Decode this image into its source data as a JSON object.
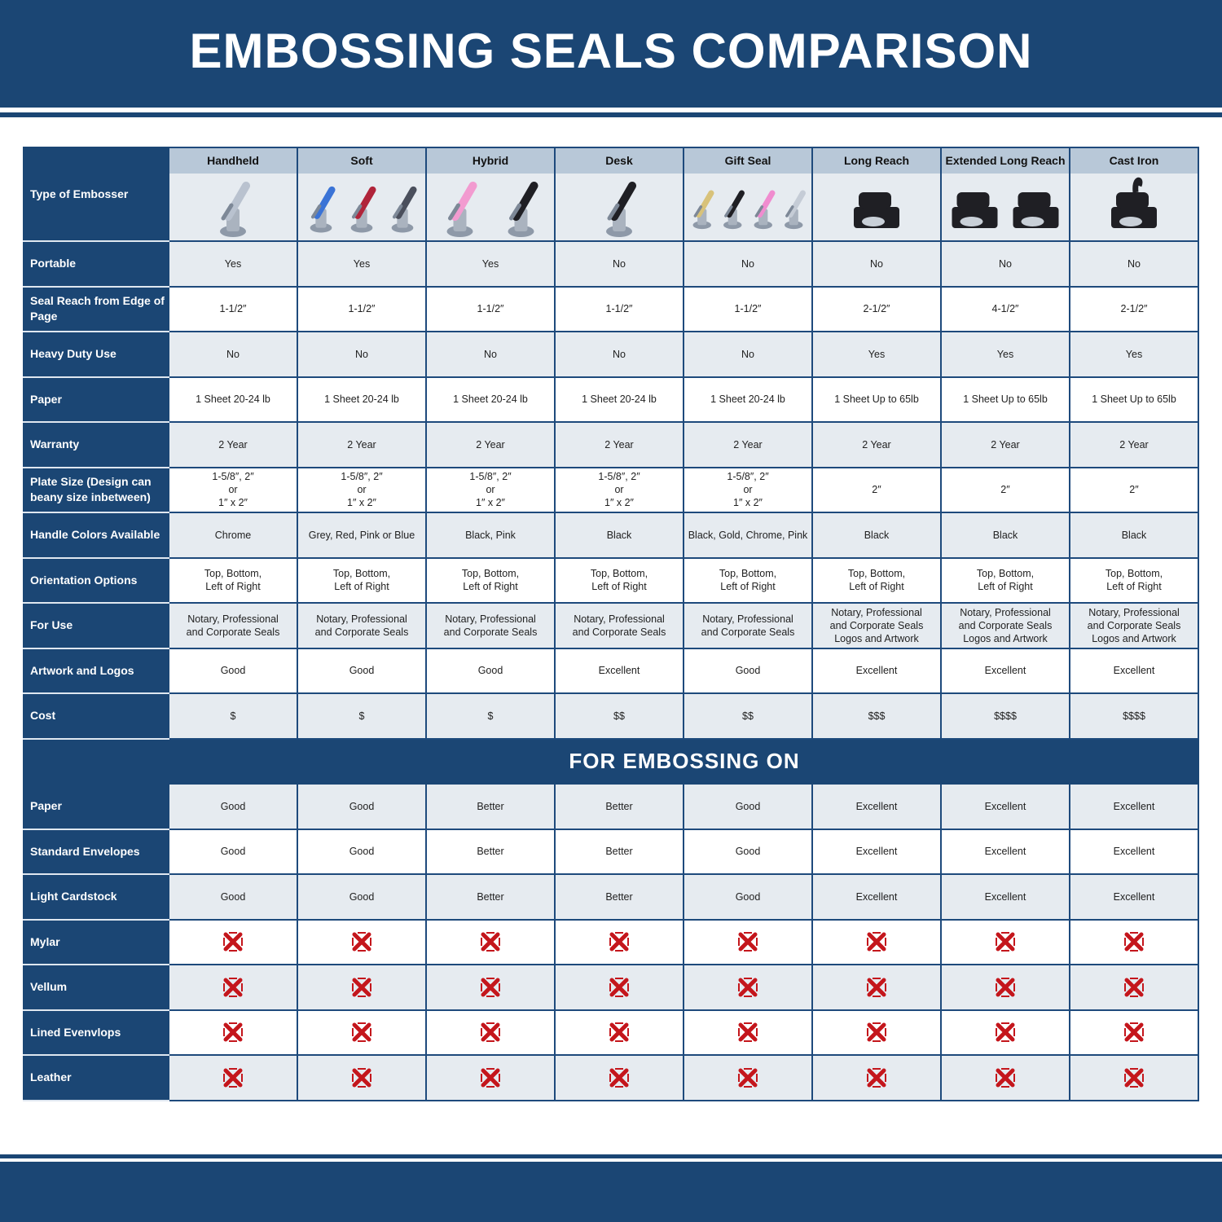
{
  "title": "EMBOSSING SEALS COMPARISON",
  "type_label": "Type of Embosser",
  "columns": [
    "Handheld",
    "Soft",
    "Hybrid",
    "Desk",
    "Gift Seal",
    "Long Reach",
    "Extended Long Reach",
    "Cast Iron"
  ],
  "product_image_colors": [
    [
      "#b9c2cf"
    ],
    [
      "#3a73d6",
      "#b0243a",
      "#4a4f5c"
    ],
    [
      "#f29bd0",
      "#1f1f24"
    ],
    [
      "#1f1f24"
    ],
    [
      "#d8c27a",
      "#1f1f24",
      "#f08ccf",
      "#c5ccd6"
    ],
    [
      "#1f1f24"
    ],
    [
      "#1f1f24",
      "#1f1f24"
    ],
    [
      "#1f1f24"
    ]
  ],
  "rows": [
    {
      "label": "Portable",
      "values": [
        "Yes",
        "Yes",
        "Yes",
        "No",
        "No",
        "No",
        "No",
        "No"
      ]
    },
    {
      "label": "Seal Reach from Edge of Page",
      "values": [
        "1-1/2″",
        "1-1/2″",
        "1-1/2″",
        "1-1/2″",
        "1-1/2″",
        "2-1/2″",
        "4-1/2″",
        "2-1/2″"
      ]
    },
    {
      "label": "Heavy Duty Use",
      "values": [
        "No",
        "No",
        "No",
        "No",
        "No",
        "Yes",
        "Yes",
        "Yes"
      ]
    },
    {
      "label": "Paper",
      "values": [
        "1 Sheet 20-24 lb",
        "1 Sheet 20-24 lb",
        "1 Sheet 20-24 lb",
        "1 Sheet 20-24 lb",
        "1 Sheet 20-24 lb",
        "1 Sheet Up to 65lb",
        "1 Sheet Up to 65lb",
        "1 Sheet Up to 65lb"
      ]
    },
    {
      "label": "Warranty",
      "values": [
        "2 Year",
        "2 Year",
        "2 Year",
        "2 Year",
        "2 Year",
        "2 Year",
        "2 Year",
        "2 Year"
      ]
    },
    {
      "label": "Plate Size (Design can beany size inbetween)",
      "values": [
        "1-5/8″, 2″\nor\n1″ x 2″",
        "1-5/8″, 2″\nor\n1″ x 2″",
        "1-5/8″, 2″\nor\n1″ x 2″",
        "1-5/8″, 2″\nor\n1″ x 2″",
        "1-5/8″, 2″\nor\n1″ x 2″",
        "2″",
        "2″",
        "2″"
      ]
    },
    {
      "label": "Handle Colors Available",
      "values": [
        "Chrome",
        "Grey, Red, Pink or Blue",
        "Black, Pink",
        "Black",
        "Black, Gold, Chrome, Pink",
        "Black",
        "Black",
        "Black"
      ]
    },
    {
      "label": "Orientation Options",
      "values": [
        "Top, Bottom,\nLeft of Right",
        "Top, Bottom,\nLeft of Right",
        "Top, Bottom,\nLeft of Right",
        "Top, Bottom,\nLeft of Right",
        "Top, Bottom,\nLeft of Right",
        "Top, Bottom,\nLeft of Right",
        "Top, Bottom,\nLeft of Right",
        "Top, Bottom,\nLeft of Right"
      ]
    },
    {
      "label": "For Use",
      "values": [
        "Notary, Professional\nand Corporate Seals",
        "Notary, Professional\nand Corporate Seals",
        "Notary, Professional\nand Corporate Seals",
        "Notary, Professional\nand Corporate Seals",
        "Notary, Professional\nand Corporate Seals",
        "Notary, Professional\nand Corporate Seals\nLogos and Artwork",
        "Notary, Professional\nand Corporate Seals\nLogos and Artwork",
        "Notary, Professional\nand Corporate Seals\nLogos and Artwork"
      ]
    },
    {
      "label": "Artwork and Logos",
      "values": [
        "Good",
        "Good",
        "Good",
        "Excellent",
        "Good",
        "Excellent",
        "Excellent",
        "Excellent"
      ]
    },
    {
      "label": "Cost",
      "values": [
        "$",
        "$",
        "$",
        "$$",
        "$$",
        "$$$",
        "$$$$",
        "$$$$"
      ]
    }
  ],
  "section_title": "FOR EMBOSSING ON",
  "section_rows": [
    {
      "label": "Paper",
      "values": [
        "Good",
        "Good",
        "Better",
        "Better",
        "Good",
        "Excellent",
        "Excellent",
        "Excellent"
      ]
    },
    {
      "label": "Standard Envelopes",
      "values": [
        "Good",
        "Good",
        "Better",
        "Better",
        "Good",
        "Excellent",
        "Excellent",
        "Excellent"
      ]
    },
    {
      "label": "Light Cardstock",
      "values": [
        "Good",
        "Good",
        "Better",
        "Better",
        "Good",
        "Excellent",
        "Excellent",
        "Excellent"
      ]
    },
    {
      "label": "Mylar",
      "icon": "red-x-icon"
    },
    {
      "label": "Vellum",
      "icon": "red-x-icon"
    },
    {
      "label": "Lined Evenvlops",
      "icon": "red-x-icon"
    },
    {
      "label": "Leather",
      "icon": "red-x-icon"
    }
  ],
  "colors": {
    "brand_blue": "#1b4674",
    "header_gray": "#b8c8d8",
    "row_gray": "#e6ebf0",
    "x_red": "#c4161c"
  }
}
